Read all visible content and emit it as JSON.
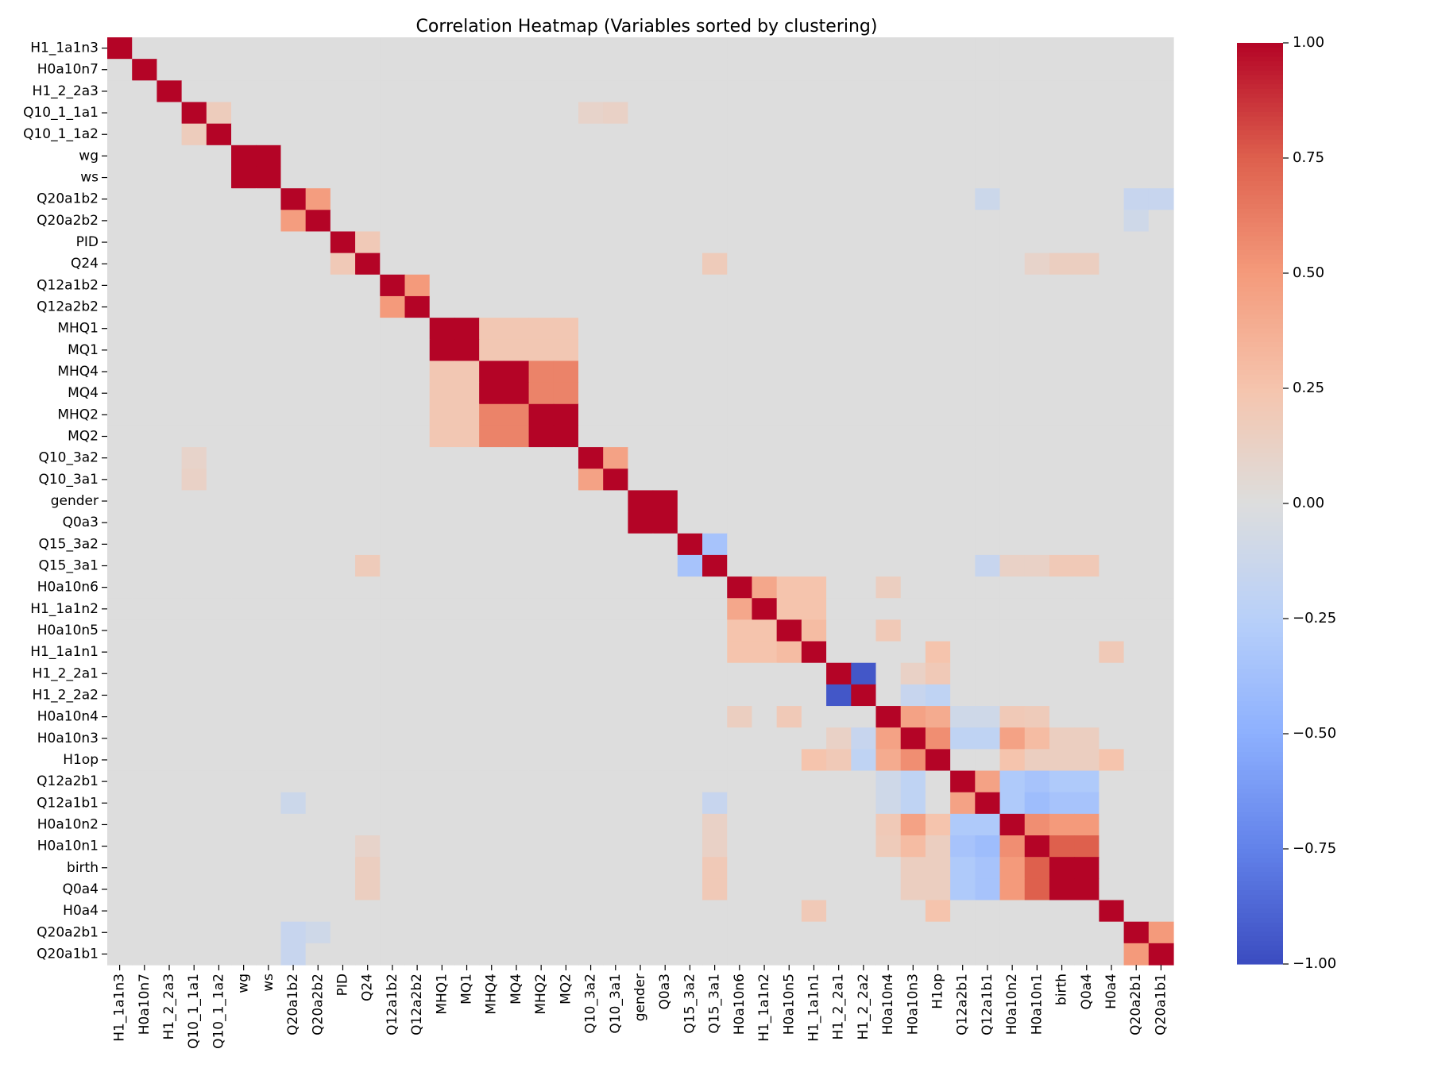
{
  "chart_data": {
    "type": "heatmap",
    "title": "Correlation Heatmap (Variables sorted by clustering)",
    "xlabel": "",
    "ylabel": "",
    "variables": [
      "H1_1a1n3",
      "H0a10n7",
      "H1_2_2a3",
      "Q10_1_1a1",
      "Q10_1_1a2",
      "wg",
      "ws",
      "Q20a1b2",
      "Q20a2b2",
      "PID",
      "Q24",
      "Q12a1b2",
      "Q12a2b2",
      "MHQ1",
      "MQ1",
      "MHQ4",
      "MQ4",
      "MHQ2",
      "MQ2",
      "Q10_3a2",
      "Q10_3a1",
      "gender",
      "Q0a3",
      "Q15_3a2",
      "Q15_3a1",
      "H0a10n6",
      "H1_1a1n2",
      "H0a10n5",
      "H1_1a1n1",
      "H1_2_2a1",
      "H1_2_2a2",
      "H0a10n4",
      "H0a10n3",
      "H1op",
      "Q12a2b1",
      "Q12a1b1",
      "H0a10n2",
      "H0a10n1",
      "birth",
      "Q0a4",
      "H0a4",
      "Q20a2b1",
      "Q20a1b1"
    ],
    "colormap": "coolwarm",
    "color_range": [
      -1,
      1
    ],
    "colorbar_ticks": [
      -1,
      -0.75,
      -0.5,
      -0.25,
      0,
      0.25,
      0.5,
      0.75,
      1
    ],
    "colorbar_tick_labels": [
      "−1.00",
      "−0.75",
      "−0.50",
      "−0.25",
      "0.00",
      "0.25",
      "0.50",
      "0.75",
      "1.00"
    ],
    "default_value": 0,
    "pairs": [
      [
        "Q10_1_1a1",
        "Q10_1_1a2",
        0.17
      ],
      [
        "wg",
        "ws",
        1.0
      ],
      [
        "Q20a1b2",
        "Q20a2b2",
        0.48
      ],
      [
        "PID",
        "Q24",
        0.2
      ],
      [
        "Q12a1b2",
        "Q12a2b2",
        0.5
      ],
      [
        "MHQ1",
        "MQ1",
        1.0
      ],
      [
        "MHQ4",
        "MQ4",
        1.0
      ],
      [
        "MHQ2",
        "MQ2",
        1.0
      ],
      [
        "MHQ4",
        "MHQ2",
        0.6
      ],
      [
        "MHQ4",
        "MQ2",
        0.6
      ],
      [
        "MQ4",
        "MHQ2",
        0.6
      ],
      [
        "MQ4",
        "MQ2",
        0.6
      ],
      [
        "MHQ1",
        "MHQ4",
        0.22
      ],
      [
        "MHQ1",
        "MQ4",
        0.22
      ],
      [
        "MHQ1",
        "MHQ2",
        0.22
      ],
      [
        "MHQ1",
        "MQ2",
        0.22
      ],
      [
        "MQ1",
        "MHQ4",
        0.22
      ],
      [
        "MQ1",
        "MQ4",
        0.22
      ],
      [
        "MQ1",
        "MHQ2",
        0.22
      ],
      [
        "MQ1",
        "MQ2",
        0.22
      ],
      [
        "Q10_3a2",
        "Q10_3a1",
        0.45
      ],
      [
        "gender",
        "Q0a3",
        1.0
      ],
      [
        "Q15_3a2",
        "Q15_3a1",
        -0.35
      ],
      [
        "H0a10n6",
        "H1_1a1n2",
        0.42
      ],
      [
        "H0a10n6",
        "H0a10n5",
        0.25
      ],
      [
        "H0a10n6",
        "H1_1a1n1",
        0.25
      ],
      [
        "H1_1a1n2",
        "H0a10n5",
        0.25
      ],
      [
        "H1_1a1n2",
        "H1_1a1n1",
        0.25
      ],
      [
        "H0a10n5",
        "H1_1a1n1",
        0.3
      ],
      [
        "H1_2_2a1",
        "H1_2_2a2",
        -0.95
      ],
      [
        "H0a10n4",
        "H0a10n3",
        0.45
      ],
      [
        "H0a10n4",
        "H1op",
        0.4
      ],
      [
        "H0a10n3",
        "H1op",
        0.55
      ],
      [
        "Q12a2b1",
        "Q12a1b1",
        0.45
      ],
      [
        "H0a10n2",
        "H0a10n1",
        0.55
      ],
      [
        "H0a10n2",
        "birth",
        0.5
      ],
      [
        "H0a10n2",
        "Q0a4",
        0.5
      ],
      [
        "H0a10n1",
        "birth",
        0.75
      ],
      [
        "H0a10n1",
        "Q0a4",
        0.75
      ],
      [
        "birth",
        "Q0a4",
        1.0
      ],
      [
        "Q20a2b1",
        "Q20a1b1",
        0.5
      ],
      [
        "Q12a2b1",
        "H0a10n2",
        -0.3
      ],
      [
        "Q12a2b1",
        "H0a10n1",
        -0.35
      ],
      [
        "Q12a2b1",
        "birth",
        -0.3
      ],
      [
        "Q12a2b1",
        "Q0a4",
        -0.3
      ],
      [
        "Q12a1b1",
        "H0a10n2",
        -0.3
      ],
      [
        "Q12a1b1",
        "H0a10n1",
        -0.4
      ],
      [
        "Q12a1b1",
        "birth",
        -0.35
      ],
      [
        "Q12a1b1",
        "Q0a4",
        -0.35
      ],
      [
        "H0a10n3",
        "H0a10n2",
        0.45
      ],
      [
        "H0a10n3",
        "H0a10n1",
        0.3
      ],
      [
        "H0a10n3",
        "birth",
        0.15
      ],
      [
        "H0a10n3",
        "Q0a4",
        0.15
      ],
      [
        "H0a10n4",
        "H0a10n2",
        0.2
      ],
      [
        "H0a10n4",
        "H0a10n1",
        0.18
      ],
      [
        "H1op",
        "H0a10n2",
        0.25
      ],
      [
        "H1op",
        "H0a10n1",
        0.15
      ],
      [
        "H1op",
        "birth",
        0.15
      ],
      [
        "H1op",
        "Q0a4",
        0.15
      ],
      [
        "H1op",
        "H0a4",
        0.25
      ],
      [
        "H0a10n3",
        "Q12a2b1",
        -0.2
      ],
      [
        "H0a10n3",
        "Q12a1b1",
        -0.2
      ],
      [
        "H0a10n4",
        "Q12a2b1",
        -0.1
      ],
      [
        "H0a10n4",
        "Q12a1b1",
        -0.1
      ],
      [
        "H1_2_2a2",
        "H1op",
        -0.2
      ],
      [
        "H1_2_2a2",
        "H0a10n3",
        -0.15
      ],
      [
        "H1_2_2a1",
        "H1op",
        0.2
      ],
      [
        "H1_2_2a1",
        "H0a10n3",
        0.12
      ],
      [
        "H1_1a1n1",
        "H0a4",
        0.2
      ],
      [
        "H1_1a1n1",
        "H1op",
        0.25
      ],
      [
        "H0a10n5",
        "H0a10n4",
        0.2
      ],
      [
        "H0a10n6",
        "H0a10n4",
        0.15
      ],
      [
        "Q15_3a1",
        "birth",
        0.2
      ],
      [
        "Q15_3a1",
        "Q0a4",
        0.2
      ],
      [
        "Q15_3a1",
        "H0a10n1",
        0.12
      ],
      [
        "Q15_3a1",
        "H0a10n2",
        0.12
      ],
      [
        "Q15_3a1",
        "Q24",
        0.18
      ],
      [
        "Q15_3a1",
        "Q12a1b1",
        -0.15
      ],
      [
        "Q10_3a2",
        "Q10_1_1a1",
        0.1
      ],
      [
        "Q10_3a1",
        "Q10_1_1a1",
        0.12
      ],
      [
        "Q20a1b2",
        "Q12a1b1",
        -0.12
      ],
      [
        "Q20a1b2",
        "Q20a2b1",
        -0.15
      ],
      [
        "Q20a1b2",
        "Q20a1b1",
        -0.15
      ],
      [
        "Q20a2b2",
        "Q20a2b1",
        -0.1
      ],
      [
        "Q24",
        "birth",
        0.15
      ],
      [
        "Q24",
        "Q0a4",
        0.15
      ],
      [
        "Q24",
        "H0a10n1",
        0.1
      ]
    ]
  }
}
